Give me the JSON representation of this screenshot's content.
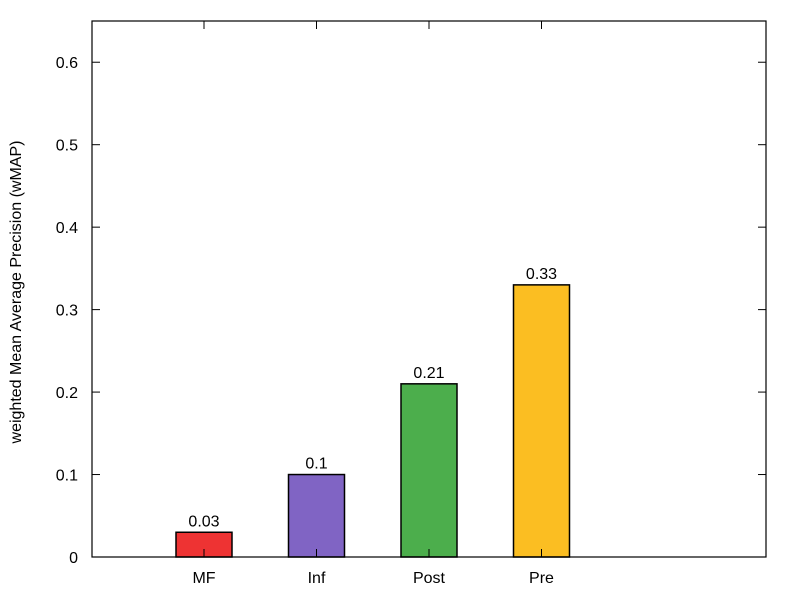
{
  "chart_data": {
    "type": "bar",
    "title": "",
    "xlabel": "",
    "ylabel": "weighted Mean Average Precision (wMAP)",
    "categories": [
      "MF",
      "Inf",
      "Post",
      "Pre"
    ],
    "values": [
      0.03,
      0.1,
      0.21,
      0.33
    ],
    "data_labels": [
      "0.03",
      "0.1",
      "0.21",
      "0.33"
    ],
    "colors": [
      "#ee3333",
      "#8064c4",
      "#4cae4c",
      "#fbbe22"
    ],
    "ylim": [
      0,
      0.65
    ],
    "yticks": [
      {
        "value": 0,
        "label": "0"
      },
      {
        "value": 0.1,
        "label": "0.1"
      },
      {
        "value": 0.2,
        "label": "0.2"
      },
      {
        "value": 0.3,
        "label": "0.3"
      },
      {
        "value": 0.4,
        "label": "0.4"
      },
      {
        "value": 0.5,
        "label": "0.5"
      },
      {
        "value": 0.6,
        "label": "0.6"
      }
    ],
    "grid": false,
    "legend": "none"
  }
}
